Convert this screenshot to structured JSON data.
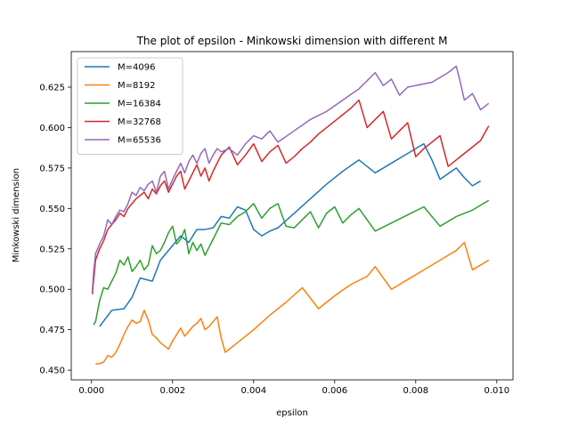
{
  "chart_data": {
    "type": "line",
    "title": "The plot of epsilon - Minkowski dimension with different M",
    "xlabel": "epsilon",
    "ylabel": "Minkowski dimension",
    "xlim": [
      -0.0005,
      0.0104
    ],
    "ylim": [
      0.444,
      0.647
    ],
    "xticks": [
      0.0,
      0.002,
      0.004,
      0.006,
      0.008,
      0.01
    ],
    "xtick_labels": [
      "0.000",
      "0.002",
      "0.004",
      "0.006",
      "0.008",
      "0.010"
    ],
    "yticks": [
      0.45,
      0.475,
      0.5,
      0.525,
      0.55,
      0.575,
      0.6,
      0.625
    ],
    "ytick_labels": [
      "0.450",
      "0.475",
      "0.500",
      "0.525",
      "0.550",
      "0.575",
      "0.600",
      "0.625"
    ],
    "grid": false,
    "legend_position": "top-left",
    "series": [
      {
        "name": "M=4096",
        "color": "#1f77b4",
        "x": [
          0.0002,
          0.0005,
          0.0008,
          0.001,
          0.0012,
          0.0015,
          0.0017,
          0.002,
          0.0022,
          0.0024,
          0.0026,
          0.0028,
          0.003,
          0.0032,
          0.0034,
          0.0036,
          0.0038,
          0.004,
          0.0042,
          0.0044,
          0.0046,
          0.005,
          0.0054,
          0.0058,
          0.0062,
          0.0066,
          0.007,
          0.0074,
          0.0078,
          0.0082,
          0.0084,
          0.0086,
          0.009,
          0.0092,
          0.0094,
          0.0096
        ],
        "y": [
          0.477,
          0.487,
          0.488,
          0.495,
          0.507,
          0.505,
          0.518,
          0.527,
          0.533,
          0.529,
          0.537,
          0.537,
          0.538,
          0.545,
          0.544,
          0.551,
          0.549,
          0.537,
          0.533,
          0.536,
          0.538,
          0.547,
          0.556,
          0.565,
          0.573,
          0.58,
          0.572,
          0.578,
          0.584,
          0.59,
          0.58,
          0.568,
          0.575,
          0.569,
          0.564,
          0.567
        ]
      },
      {
        "name": "M=8192",
        "color": "#ff7f0e",
        "x": [
          0.0001,
          0.0002,
          0.0003,
          0.0004,
          0.0005,
          0.0006,
          0.0007,
          0.0008,
          0.0009,
          0.001,
          0.0011,
          0.0012,
          0.0013,
          0.0014,
          0.0015,
          0.0016,
          0.0017,
          0.0018,
          0.0019,
          0.002,
          0.0022,
          0.0023,
          0.0024,
          0.0025,
          0.0026,
          0.0027,
          0.0028,
          0.0029,
          0.003,
          0.0031,
          0.0032,
          0.0033,
          0.0036,
          0.004,
          0.0044,
          0.0048,
          0.0052,
          0.0056,
          0.006,
          0.0064,
          0.0068,
          0.007,
          0.0074,
          0.0078,
          0.0082,
          0.0086,
          0.009,
          0.0092,
          0.0094,
          0.0096,
          0.0098
        ],
        "y": [
          0.454,
          0.454,
          0.455,
          0.459,
          0.458,
          0.461,
          0.466,
          0.472,
          0.477,
          0.481,
          0.479,
          0.48,
          0.487,
          0.481,
          0.472,
          0.47,
          0.467,
          0.465,
          0.463,
          0.468,
          0.476,
          0.471,
          0.474,
          0.477,
          0.479,
          0.482,
          0.475,
          0.477,
          0.48,
          0.483,
          0.47,
          0.461,
          0.467,
          0.475,
          0.484,
          0.492,
          0.501,
          0.488,
          0.496,
          0.503,
          0.508,
          0.514,
          0.5,
          0.506,
          0.512,
          0.518,
          0.524,
          0.529,
          0.512,
          0.515,
          0.518
        ]
      },
      {
        "name": "M=16384",
        "color": "#2ca02c",
        "x": [
          5e-05,
          0.0001,
          0.0002,
          0.0003,
          0.0004,
          0.0005,
          0.0006,
          0.0007,
          0.0008,
          0.0009,
          0.001,
          0.0011,
          0.0012,
          0.0013,
          0.0014,
          0.0015,
          0.0016,
          0.0017,
          0.0018,
          0.0019,
          0.002,
          0.0021,
          0.0022,
          0.0023,
          0.0024,
          0.0025,
          0.0026,
          0.0027,
          0.0028,
          0.0029,
          0.003,
          0.0032,
          0.0034,
          0.0036,
          0.0038,
          0.004,
          0.0042,
          0.0044,
          0.0046,
          0.0048,
          0.005,
          0.0052,
          0.0054,
          0.0056,
          0.0058,
          0.006,
          0.0062,
          0.0064,
          0.0066,
          0.007,
          0.0074,
          0.0078,
          0.0082,
          0.0086,
          0.009,
          0.0094,
          0.0098
        ],
        "y": [
          0.478,
          0.48,
          0.493,
          0.501,
          0.5,
          0.505,
          0.51,
          0.518,
          0.515,
          0.52,
          0.511,
          0.514,
          0.518,
          0.512,
          0.515,
          0.527,
          0.522,
          0.524,
          0.529,
          0.535,
          0.539,
          0.528,
          0.531,
          0.537,
          0.522,
          0.529,
          0.524,
          0.528,
          0.521,
          0.526,
          0.531,
          0.541,
          0.54,
          0.545,
          0.548,
          0.553,
          0.544,
          0.55,
          0.553,
          0.539,
          0.538,
          0.543,
          0.548,
          0.538,
          0.547,
          0.551,
          0.541,
          0.546,
          0.55,
          0.536,
          0.541,
          0.546,
          0.551,
          0.539,
          0.545,
          0.549,
          0.555
        ]
      },
      {
        "name": "M=32768",
        "color": "#d62728",
        "x": [
          2e-05,
          5e-05,
          0.0001,
          0.0002,
          0.0003,
          0.0004,
          0.0005,
          0.0006,
          0.0007,
          0.0008,
          0.0009,
          0.001,
          0.0011,
          0.0012,
          0.0013,
          0.0014,
          0.0015,
          0.0016,
          0.0017,
          0.0018,
          0.0019,
          0.002,
          0.0021,
          0.0022,
          0.0023,
          0.0024,
          0.0025,
          0.0026,
          0.0027,
          0.0028,
          0.0029,
          0.003,
          0.0031,
          0.0032,
          0.0034,
          0.0036,
          0.0038,
          0.004,
          0.0042,
          0.0044,
          0.0046,
          0.0048,
          0.005,
          0.0052,
          0.0054,
          0.0056,
          0.0058,
          0.006,
          0.0062,
          0.0064,
          0.0066,
          0.0068,
          0.007,
          0.0072,
          0.0074,
          0.0076,
          0.0078,
          0.008,
          0.0082,
          0.0084,
          0.0086,
          0.0088,
          0.009,
          0.0092,
          0.0094,
          0.0096,
          0.0098
        ],
        "y": [
          0.497,
          0.505,
          0.518,
          0.525,
          0.53,
          0.537,
          0.54,
          0.543,
          0.547,
          0.545,
          0.55,
          0.553,
          0.556,
          0.558,
          0.56,
          0.556,
          0.562,
          0.559,
          0.564,
          0.567,
          0.56,
          0.565,
          0.57,
          0.573,
          0.562,
          0.567,
          0.572,
          0.577,
          0.57,
          0.575,
          0.567,
          0.573,
          0.578,
          0.583,
          0.588,
          0.577,
          0.583,
          0.59,
          0.579,
          0.585,
          0.589,
          0.578,
          0.582,
          0.587,
          0.591,
          0.596,
          0.6,
          0.604,
          0.608,
          0.612,
          0.617,
          0.6,
          0.605,
          0.61,
          0.593,
          0.598,
          0.603,
          0.582,
          0.587,
          0.591,
          0.595,
          0.576,
          0.58,
          0.584,
          0.588,
          0.592,
          0.601
        ]
      },
      {
        "name": "M=65536",
        "color": "#9467bd",
        "x": [
          2e-05,
          5e-05,
          0.0001,
          0.0002,
          0.0003,
          0.0004,
          0.0005,
          0.0006,
          0.0007,
          0.0008,
          0.0009,
          0.001,
          0.0011,
          0.0012,
          0.0013,
          0.0014,
          0.0015,
          0.0016,
          0.0017,
          0.0018,
          0.0019,
          0.002,
          0.0021,
          0.0022,
          0.0023,
          0.0024,
          0.0025,
          0.0026,
          0.0027,
          0.0028,
          0.0029,
          0.003,
          0.0031,
          0.0032,
          0.0034,
          0.0036,
          0.0038,
          0.004,
          0.0042,
          0.0044,
          0.0046,
          0.005,
          0.0054,
          0.0058,
          0.0062,
          0.0066,
          0.007,
          0.0072,
          0.0074,
          0.0076,
          0.0078,
          0.008,
          0.0084,
          0.0088,
          0.009,
          0.0091,
          0.0092,
          0.0094,
          0.0096,
          0.0098
        ],
        "y": [
          0.499,
          0.51,
          0.522,
          0.528,
          0.533,
          0.543,
          0.54,
          0.545,
          0.549,
          0.548,
          0.553,
          0.56,
          0.558,
          0.563,
          0.561,
          0.565,
          0.567,
          0.56,
          0.57,
          0.573,
          0.562,
          0.568,
          0.573,
          0.578,
          0.572,
          0.579,
          0.583,
          0.578,
          0.584,
          0.587,
          0.578,
          0.583,
          0.587,
          0.585,
          0.587,
          0.583,
          0.59,
          0.595,
          0.593,
          0.598,
          0.591,
          0.598,
          0.605,
          0.61,
          0.617,
          0.624,
          0.634,
          0.626,
          0.63,
          0.62,
          0.625,
          0.626,
          0.628,
          0.634,
          0.638,
          0.628,
          0.617,
          0.621,
          0.611,
          0.615
        ]
      }
    ]
  }
}
